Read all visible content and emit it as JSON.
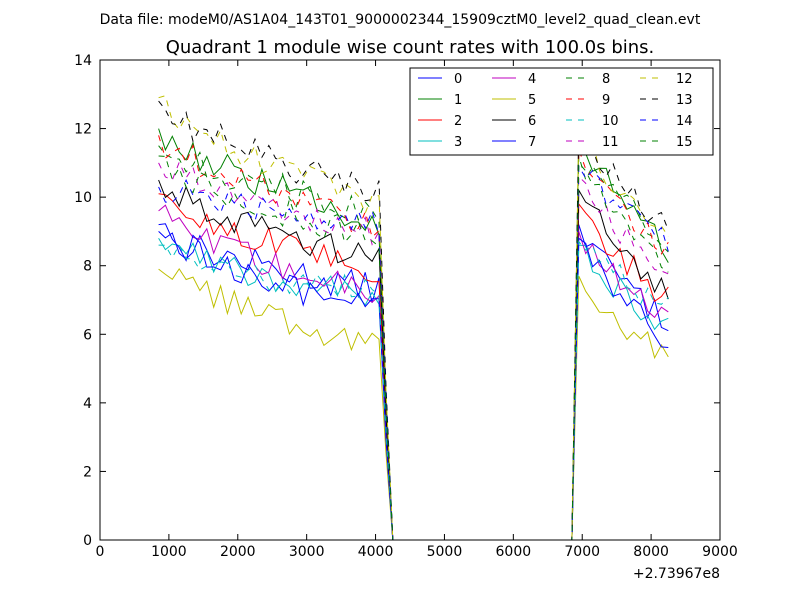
{
  "chart_data": {
    "type": "line",
    "suptitle": "Data file: modeM0/AS1A04_143T01_9000002344_15909cztM0_level2_quad_clean.evt",
    "title": "Quadrant 1 module wise count rates with 100.0s bins.",
    "xlabel": "",
    "ylabel": "",
    "x_offset_label": "+2.73967e8",
    "xlim": [
      0,
      9000
    ],
    "ylim": [
      0,
      14
    ],
    "xticks": [
      0,
      1000,
      2000,
      3000,
      4000,
      5000,
      6000,
      7000,
      8000,
      9000
    ],
    "yticks": [
      0,
      2,
      4,
      6,
      8,
      10,
      12,
      14
    ],
    "grid": false,
    "legend": {
      "location": "top-right",
      "columns": 4
    },
    "segments": [
      {
        "x_start": 850,
        "x_end": 4050,
        "step": 100
      },
      {
        "x_start": 6950,
        "x_end": 8250,
        "step": 100
      }
    ],
    "drop_to_zero_at": 4250,
    "rise_from_zero_at": 6850,
    "zero_gap": [
      4250,
      6850
    ],
    "series": [
      {
        "name": "0",
        "color": "#0000ff",
        "dash": "solid",
        "first": 9.0,
        "seg1_end": 7.3,
        "seg2_start": 9.2,
        "seg2_end": 6.3
      },
      {
        "name": "1",
        "color": "#008000",
        "dash": "solid",
        "first": 12.0,
        "seg1_end": 9.3,
        "seg2_start": 11.8,
        "seg2_end": 8.4
      },
      {
        "name": "2",
        "color": "#ff0000",
        "dash": "solid",
        "first": 10.1,
        "seg1_end": 7.8,
        "seg2_start": 9.8,
        "seg2_end": 7.0
      },
      {
        "name": "3",
        "color": "#00bfbf",
        "dash": "solid",
        "first": 8.8,
        "seg1_end": 7.0,
        "seg2_start": 8.6,
        "seg2_end": 6.2
      },
      {
        "name": "4",
        "color": "#bf00bf",
        "dash": "solid",
        "first": 9.6,
        "seg1_end": 7.1,
        "seg2_start": 9.0,
        "seg2_end": 6.5
      },
      {
        "name": "5",
        "color": "#bfbf00",
        "dash": "solid",
        "first": 7.9,
        "seg1_end": 5.7,
        "seg2_start": 7.7,
        "seg2_end": 5.3
      },
      {
        "name": "6",
        "color": "#000000",
        "dash": "solid",
        "first": 10.5,
        "seg1_end": 8.2,
        "seg2_start": 10.2,
        "seg2_end": 7.1
      },
      {
        "name": "7",
        "color": "#0000ff",
        "dash": "solid",
        "first": 9.2,
        "seg1_end": 6.6,
        "seg2_start": 8.8,
        "seg2_end": 5.8
      },
      {
        "name": "8",
        "color": "#008000",
        "dash": "dashed",
        "first": 11.5,
        "seg1_end": 9.6,
        "seg2_start": 11.2,
        "seg2_end": 8.7
      },
      {
        "name": "9",
        "color": "#ff0000",
        "dash": "dashed",
        "first": 11.8,
        "seg1_end": 9.2,
        "seg2_start": 11.4,
        "seg2_end": 8.3
      },
      {
        "name": "10",
        "color": "#00bfbf",
        "dash": "dashed",
        "first": 8.6,
        "seg1_end": 7.2,
        "seg2_start": 8.7,
        "seg2_end": 6.8
      },
      {
        "name": "11",
        "color": "#bf00bf",
        "dash": "dashed",
        "first": 11.0,
        "seg1_end": 8.9,
        "seg2_start": 10.6,
        "seg2_end": 7.6
      },
      {
        "name": "12",
        "color": "#bfbf00",
        "dash": "dashed",
        "first": 12.9,
        "seg1_end": 9.8,
        "seg2_start": 12.0,
        "seg2_end": 8.8
      },
      {
        "name": "13",
        "color": "#000000",
        "dash": "dashed",
        "first": 12.8,
        "seg1_end": 10.1,
        "seg2_start": 12.1,
        "seg2_end": 9.1
      },
      {
        "name": "14",
        "color": "#0000ff",
        "dash": "dashed",
        "first": 10.3,
        "seg1_end": 9.3,
        "seg2_start": 10.9,
        "seg2_end": 8.6
      },
      {
        "name": "15",
        "color": "#008000",
        "dash": "dashed",
        "first": 11.2,
        "seg1_end": 8.8,
        "seg2_start": 11.0,
        "seg2_end": 8.1
      }
    ]
  }
}
